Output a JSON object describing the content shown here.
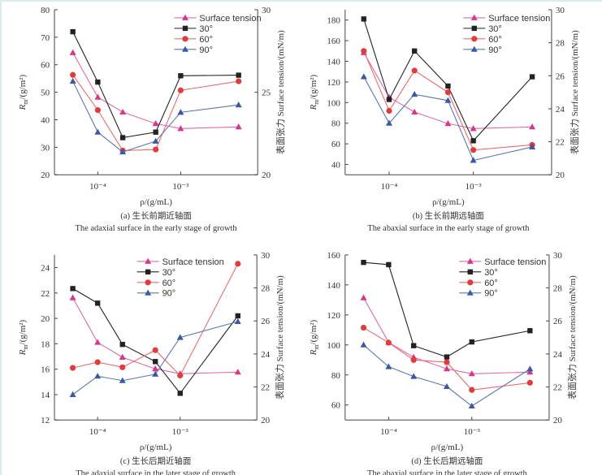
{
  "chart_data": [
    {
      "type": "line",
      "panel": "a",
      "caption_cn": "(a) 生长前期近轴面",
      "caption_en": "The adaxial surface in the early stage of growth",
      "xlabel": "ρ/(g/mL)",
      "ylabel": "R",
      "ylabel_sub": "m",
      "ylabel_unit": "/(g/m²)",
      "y2label": "表面张力 Surface tension/(mN/m)",
      "x": [
        5e-05,
        0.0001,
        0.0002,
        0.0005,
        0.001,
        0.005
      ],
      "x_scale": "log",
      "x_ticks": [
        {
          "value": 0.0001,
          "label": "10⁻⁴"
        },
        {
          "value": 0.001,
          "label": "10⁻³"
        }
      ],
      "ylim": [
        20,
        80
      ],
      "yticks": [
        20,
        30,
        40,
        50,
        60,
        70,
        80
      ],
      "y2lim": [
        20,
        30
      ],
      "y2ticks": [
        20,
        25,
        30
      ],
      "legend": "top-right",
      "series": [
        {
          "name": "Surface tension",
          "axis": "right",
          "marker": "triangle",
          "color": "#d9358c",
          "values": [
            27.4,
            24.7,
            23.8,
            23.1,
            22.8,
            22.9
          ]
        },
        {
          "name": "30°",
          "axis": "left",
          "marker": "square",
          "color": "#222222",
          "values": [
            72,
            53.7,
            33.5,
            35.5,
            56,
            56.2
          ]
        },
        {
          "name": "60°",
          "axis": "left",
          "marker": "circle",
          "color": "#e33b3b",
          "values": [
            56.3,
            43.5,
            28.8,
            29.2,
            50.7,
            54
          ]
        },
        {
          "name": "90°",
          "axis": "left",
          "marker": "triangle",
          "color": "#3a58a6",
          "values": [
            54,
            35.5,
            28.3,
            32.2,
            42.7,
            45.4
          ]
        }
      ]
    },
    {
      "type": "line",
      "panel": "b",
      "caption_cn": "(b) 生长前期远轴面",
      "caption_en": "The abaxial surface in the early stage of growth",
      "xlabel": "ρ/(g/mL)",
      "ylabel": "R",
      "ylabel_sub": "m",
      "ylabel_unit": "/(g/m²)",
      "y2label": "表面张力 Surface tension/(mN/m)",
      "x": [
        5e-05,
        0.0001,
        0.0002,
        0.0005,
        0.001,
        0.005
      ],
      "x_scale": "log",
      "x_ticks": [
        {
          "value": 0.0001,
          "label": "10⁻⁴"
        },
        {
          "value": 0.001,
          "label": "10⁻³"
        }
      ],
      "ylim": [
        30,
        190
      ],
      "yticks": [
        40,
        60,
        80,
        100,
        120,
        140,
        160,
        180
      ],
      "y2lim": [
        20,
        30
      ],
      "y2ticks": [
        20,
        22,
        24,
        26,
        28,
        30
      ],
      "legend": "top-right",
      "series": [
        {
          "name": "Surface tension",
          "axis": "right",
          "marker": "triangle",
          "color": "#d9358c",
          "values": [
            27.4,
            24.7,
            23.8,
            23.1,
            22.8,
            22.9
          ]
        },
        {
          "name": "30°",
          "axis": "left",
          "marker": "square",
          "color": "#222222",
          "values": [
            181,
            103,
            150,
            116,
            63,
            125
          ]
        },
        {
          "name": "60°",
          "axis": "left",
          "marker": "circle",
          "color": "#e33b3b",
          "values": [
            150,
            92,
            131,
            110,
            54,
            59
          ]
        },
        {
          "name": "90°",
          "axis": "left",
          "marker": "triangle",
          "color": "#3a58a6",
          "values": [
            125,
            80,
            108,
            102,
            44,
            57
          ]
        }
      ]
    },
    {
      "type": "line",
      "panel": "c",
      "caption_cn": "(c) 生长后期近轴面",
      "caption_en": "The adaxial surface in the later stage of growth",
      "xlabel": "ρ/(g/mL)",
      "ylabel": "R",
      "ylabel_sub": "m",
      "ylabel_unit": "/(g/m²)",
      "y2label": "表面张力 Surface tension/(mN/m)",
      "x": [
        5e-05,
        0.0001,
        0.0002,
        0.0005,
        0.001,
        0.005
      ],
      "x_scale": "log",
      "x_ticks": [
        {
          "value": 0.0001,
          "label": "10⁻⁴"
        },
        {
          "value": 0.001,
          "label": "10⁻³"
        }
      ],
      "ylim": [
        12,
        25
      ],
      "yticks": [
        12,
        14,
        16,
        18,
        20,
        22,
        24
      ],
      "y2lim": [
        20,
        30
      ],
      "y2ticks": [
        20,
        22,
        24,
        26,
        28,
        30
      ],
      "legend": "top-center",
      "series": [
        {
          "name": "Surface tension",
          "axis": "right",
          "marker": "triangle",
          "color": "#d9358c",
          "values": [
            27.4,
            24.7,
            23.8,
            23.1,
            22.8,
            22.9
          ]
        },
        {
          "name": "30°",
          "axis": "left",
          "marker": "square",
          "color": "#222222",
          "values": [
            22.35,
            21.2,
            17.95,
            16.6,
            14.1,
            20.2
          ]
        },
        {
          "name": "60°",
          "axis": "left",
          "marker": "circle",
          "color": "#e33b3b",
          "values": [
            16.1,
            16.55,
            16.15,
            17.5,
            15.5,
            24.3
          ]
        },
        {
          "name": "90°",
          "axis": "left",
          "marker": "triangle",
          "color": "#3a58a6",
          "values": [
            14.0,
            15.45,
            15.1,
            15.6,
            18.5,
            19.75
          ]
        }
      ]
    },
    {
      "type": "line",
      "panel": "d",
      "caption_cn": "(d) 生长后期远轴面",
      "caption_en": "The abaxial surface in the later stage of growth",
      "xlabel": "ρ/(g/mL)",
      "ylabel": "R",
      "ylabel_sub": "m",
      "ylabel_unit": "/(g/m²)",
      "y2label": "表面张力 Surface tension/(mN/m)",
      "x": [
        5e-05,
        0.0001,
        0.0002,
        0.0005,
        0.001,
        0.005
      ],
      "x_scale": "log",
      "x_ticks": [
        {
          "value": 0.0001,
          "label": "10⁻⁴"
        },
        {
          "value": 0.001,
          "label": "10⁻³"
        }
      ],
      "ylim": [
        50,
        160
      ],
      "yticks": [
        60,
        80,
        100,
        120,
        140,
        160
      ],
      "y2lim": [
        20,
        30
      ],
      "y2ticks": [
        20,
        22,
        24,
        26,
        28,
        30
      ],
      "legend": "top-right",
      "series": [
        {
          "name": "Surface tension",
          "axis": "right",
          "marker": "triangle",
          "color": "#d9358c",
          "values": [
            27.4,
            24.7,
            23.8,
            23.1,
            22.8,
            22.9
          ]
        },
        {
          "name": "30°",
          "axis": "left",
          "marker": "square",
          "color": "#222222",
          "values": [
            155,
            153.5,
            99.5,
            92,
            102,
            109.5
          ]
        },
        {
          "name": "60°",
          "axis": "left",
          "marker": "circle",
          "color": "#e33b3b",
          "values": [
            111.5,
            101.5,
            90,
            88.5,
            70,
            74.8
          ]
        },
        {
          "name": "90°",
          "axis": "left",
          "marker": "triangle",
          "color": "#3a58a6",
          "values": [
            100,
            85.5,
            79,
            72.3,
            59.3,
            84
          ]
        }
      ]
    }
  ]
}
